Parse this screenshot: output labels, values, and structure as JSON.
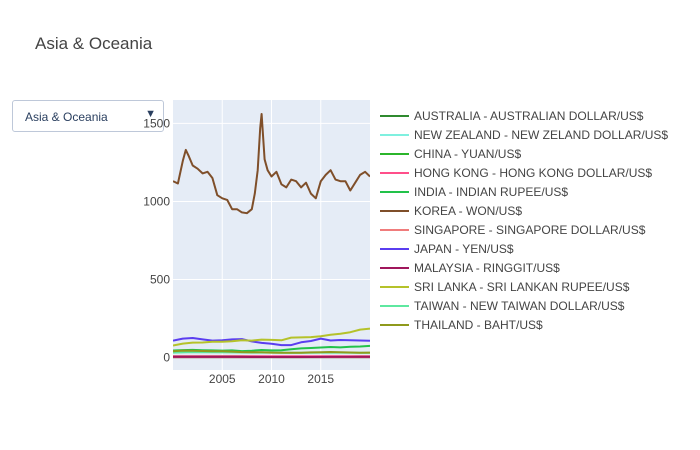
{
  "title": "Asia & Oceania",
  "dropdown": {
    "selected": "Asia & Oceania",
    "arrow": "▼"
  },
  "chart_data": {
    "type": "line",
    "title": "Asia & Oceania",
    "xlabel": "",
    "ylabel": "",
    "x_tick_labels": [
      "2005",
      "2010",
      "2015"
    ],
    "y_tick_labels": [
      "0",
      "500",
      "1000",
      "1500"
    ],
    "xlim": [
      2000,
      2020
    ],
    "ylim": [
      -80,
      1650
    ],
    "grid": true,
    "legend_position": "right",
    "series": [
      {
        "name": "AUSTRALIA - AUSTRALIAN DOLLAR/US$",
        "color": "#2f8a2f",
        "x": [
          2000,
          2001,
          2002,
          2003,
          2004,
          2005,
          2006,
          2007,
          2008,
          2009,
          2010,
          2011,
          2012,
          2013,
          2014,
          2015,
          2016,
          2017,
          2018,
          2019,
          2020
        ],
        "values": [
          1.72,
          1.93,
          1.84,
          1.54,
          1.36,
          1.31,
          1.33,
          1.19,
          1.19,
          1.28,
          1.09,
          0.97,
          0.97,
          1.04,
          1.11,
          1.33,
          1.35,
          1.3,
          1.34,
          1.44,
          1.45
        ]
      },
      {
        "name": "NEW ZEALAND - NEW ZELAND DOLLAR/US$",
        "color": "#7ff0df",
        "x": [
          2000,
          2002,
          2004,
          2006,
          2008,
          2010,
          2012,
          2014,
          2016,
          2018,
          2020
        ],
        "values": [
          2.2,
          2.16,
          1.51,
          1.54,
          1.42,
          1.39,
          1.24,
          1.21,
          1.44,
          1.45,
          1.54
        ]
      },
      {
        "name": "CHINA - YUAN/US$",
        "color": "#2bb52b",
        "x": [
          2000,
          2002,
          2004,
          2005,
          2006,
          2007,
          2008,
          2010,
          2012,
          2014,
          2015,
          2016,
          2017,
          2018,
          2019,
          2020
        ],
        "values": [
          8.28,
          8.28,
          8.28,
          8.19,
          7.97,
          7.61,
          6.95,
          6.77,
          6.31,
          6.16,
          6.28,
          6.64,
          6.76,
          6.62,
          6.91,
          6.9
        ]
      },
      {
        "name": "HONG KONG - HONG KONG DOLLAR/US$",
        "color": "#ff4f8a",
        "x": [
          2000,
          2004,
          2008,
          2012,
          2016,
          2020
        ],
        "values": [
          7.79,
          7.79,
          7.79,
          7.76,
          7.76,
          7.76
        ]
      },
      {
        "name": "INDIA - INDIAN RUPEE/US$",
        "color": "#22c24a",
        "x": [
          2000,
          2001,
          2002,
          2003,
          2004,
          2005,
          2006,
          2007,
          2008,
          2009,
          2010,
          2011,
          2012,
          2013,
          2014,
          2015,
          2016,
          2017,
          2018,
          2019,
          2020
        ],
        "values": [
          45,
          47.2,
          48.6,
          46.6,
          45.3,
          44.1,
          45.3,
          41.3,
          43.5,
          48.4,
          45.7,
          46.7,
          53.4,
          58.6,
          61,
          64.2,
          67.2,
          65.1,
          68.4,
          70.4,
          74.1
        ]
      },
      {
        "name": "KOREA - WON/US$",
        "color": "#7f4f2a",
        "x": [
          2000,
          2000.5,
          2001,
          2001.3,
          2001.6,
          2002,
          2002.5,
          2003,
          2003.5,
          2004,
          2004.5,
          2005,
          2005.5,
          2006,
          2006.5,
          2007,
          2007.5,
          2008,
          2008.3,
          2008.6,
          2008.85,
          2009,
          2009.3,
          2009.6,
          2010,
          2010.5,
          2011,
          2011.5,
          2012,
          2012.5,
          2013,
          2013.5,
          2014,
          2014.5,
          2015,
          2015.5,
          2016,
          2016.5,
          2017,
          2017.5,
          2018,
          2018.5,
          2019,
          2019.5,
          2020
        ],
        "values": [
          1130,
          1115,
          1260,
          1330,
          1290,
          1230,
          1210,
          1180,
          1190,
          1150,
          1040,
          1020,
          1010,
          950,
          950,
          930,
          925,
          950,
          1050,
          1200,
          1470,
          1560,
          1270,
          1200,
          1160,
          1190,
          1110,
          1090,
          1140,
          1130,
          1090,
          1120,
          1050,
          1020,
          1130,
          1170,
          1200,
          1140,
          1130,
          1130,
          1070,
          1120,
          1170,
          1190,
          1160
        ]
      },
      {
        "name": "SINGAPORE - SINGAPORE DOLLAR/US$",
        "color": "#f07c7c",
        "x": [
          2000,
          2002,
          2004,
          2006,
          2008,
          2010,
          2012,
          2014,
          2016,
          2018,
          2020
        ],
        "values": [
          1.72,
          1.79,
          1.69,
          1.59,
          1.41,
          1.36,
          1.25,
          1.27,
          1.38,
          1.35,
          1.38
        ]
      },
      {
        "name": "JAPAN - YEN/US$",
        "color": "#5a3df0",
        "x": [
          2000,
          2001,
          2002,
          2003,
          2004,
          2005,
          2006,
          2007,
          2008,
          2009,
          2010,
          2011,
          2012,
          2013,
          2014,
          2015,
          2016,
          2017,
          2018,
          2019,
          2020
        ],
        "values": [
          107.8,
          121.5,
          125.3,
          115.9,
          108.2,
          110.2,
          116.3,
          117.8,
          103.4,
          93.6,
          87.8,
          79.7,
          79.8,
          97.6,
          105.9,
          121,
          108.8,
          112.1,
          110.4,
          109,
          106.8
        ]
      },
      {
        "name": "MALAYSIA - RINGGIT/US$",
        "color": "#a0175c",
        "x": [
          2000,
          2004,
          2006,
          2008,
          2010,
          2012,
          2014,
          2016,
          2018,
          2020
        ],
        "values": [
          3.8,
          3.8,
          3.67,
          3.33,
          3.22,
          3.09,
          3.27,
          4.14,
          4.03,
          4.2
        ]
      },
      {
        "name": "SRI LANKA - SRI LANKAN RUPEE/US$",
        "color": "#b5c22a",
        "x": [
          2000,
          2001,
          2002,
          2003,
          2004,
          2005,
          2006,
          2007,
          2008,
          2009,
          2010,
          2011,
          2012,
          2013,
          2014,
          2015,
          2016,
          2017,
          2018,
          2019,
          2020
        ],
        "values": [
          77,
          89.4,
          95.7,
          96.5,
          101.2,
          100.5,
          103.9,
          110.6,
          108.3,
          114.9,
          113.1,
          110.6,
          127.6,
          129.1,
          130.6,
          135.9,
          145.6,
          152.5,
          162.5,
          178.8,
          185.5
        ]
      },
      {
        "name": "TAIWAN - NEW TAIWAN DOLLAR/US$",
        "color": "#5ee8a0",
        "x": [
          2000,
          2002,
          2004,
          2006,
          2008,
          2010,
          2012,
          2014,
          2016,
          2018,
          2020
        ],
        "values": [
          31.2,
          34.6,
          33.4,
          32.5,
          31.5,
          31.6,
          29.6,
          30.4,
          32.3,
          30.2,
          29.5
        ]
      },
      {
        "name": "THAILAND - BAHT/US$",
        "color": "#8f9a1c",
        "x": [
          2000,
          2001,
          2002,
          2003,
          2004,
          2005,
          2006,
          2007,
          2008,
          2009,
          2010,
          2011,
          2012,
          2013,
          2014,
          2015,
          2016,
          2017,
          2018,
          2019,
          2020
        ],
        "values": [
          40.2,
          44.5,
          43,
          41.5,
          40.2,
          40.3,
          37.9,
          34.5,
          33.3,
          34.3,
          31.7,
          30.5,
          31.1,
          30.7,
          32.5,
          34.3,
          35.3,
          33.9,
          32.3,
          31,
          31.3
        ]
      }
    ]
  }
}
